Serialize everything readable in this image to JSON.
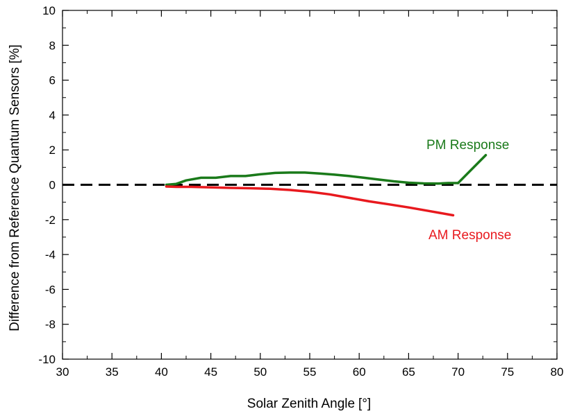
{
  "chart_data": {
    "type": "line",
    "title": "",
    "xlabel": "Solar Zenith Angle",
    "xlabel_unit": "[°]",
    "ylabel": "Difference from Reference Quantum Sensors [%]",
    "xlim": [
      30,
      80
    ],
    "ylim": [
      -10,
      10
    ],
    "x_ticks": [
      30,
      35,
      40,
      45,
      50,
      55,
      60,
      65,
      70,
      75,
      80
    ],
    "y_ticks": [
      -10,
      -8,
      -6,
      -4,
      -2,
      0,
      2,
      4,
      6,
      8,
      10
    ],
    "grid": false,
    "legend": "none",
    "reference_line": {
      "y": 0,
      "style": "dashed",
      "color": "#000000"
    },
    "series": [
      {
        "name": "PM Response",
        "color": "#1a7a1a",
        "x": [
          40.5,
          41.5,
          42.5,
          44,
          45.5,
          47,
          48.5,
          50,
          51.5,
          53,
          54.5,
          56,
          57.5,
          59,
          60.5,
          62,
          63.5,
          65,
          66.5,
          68,
          69,
          70
        ],
        "y": [
          0.0,
          0.05,
          0.25,
          0.4,
          0.4,
          0.5,
          0.5,
          0.6,
          0.68,
          0.7,
          0.7,
          0.65,
          0.58,
          0.5,
          0.4,
          0.3,
          0.2,
          0.12,
          0.08,
          0.07,
          0.1,
          0.1
        ]
      },
      {
        "name": "AM Response",
        "color": "#e8191e",
        "x": [
          40.5,
          41.5,
          43,
          45,
          47,
          49,
          51,
          53,
          55,
          57,
          59,
          61,
          63,
          65,
          67,
          69.5
        ],
        "y": [
          -0.1,
          -0.12,
          -0.12,
          -0.15,
          -0.18,
          -0.2,
          -0.23,
          -0.3,
          -0.4,
          -0.55,
          -0.75,
          -0.95,
          -1.12,
          -1.3,
          -1.5,
          -1.75
        ]
      }
    ],
    "annotations": [
      {
        "text": "PM Response",
        "color": "#1a7a1a",
        "pointer_from": [
          70,
          0.1
        ],
        "pointer_to": [
          72.8,
          1.7
        ]
      },
      {
        "text": "AM Response",
        "color": "#e8191e"
      }
    ]
  }
}
